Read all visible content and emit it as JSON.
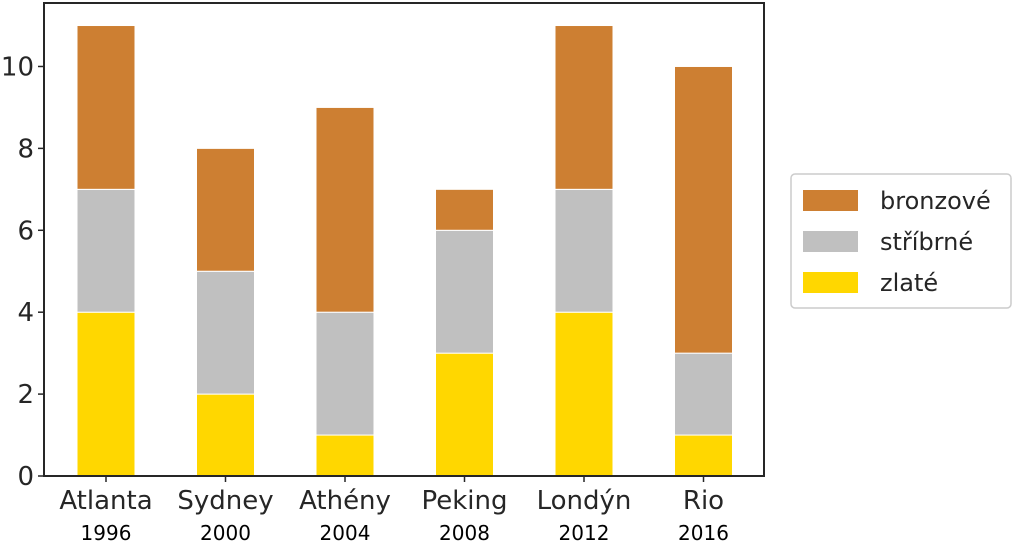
{
  "chart_data": {
    "type": "bar",
    "stacked": true,
    "categories": [
      "Atlanta",
      "Sydney",
      "Athény",
      "Peking",
      "Londýn",
      "Rio"
    ],
    "years": [
      "1996",
      "2000",
      "2004",
      "2008",
      "2012",
      "2016"
    ],
    "series": [
      {
        "name": "zlaté",
        "color": "#FFD700",
        "values": [
          4,
          2,
          1,
          3,
          4,
          1
        ]
      },
      {
        "name": "stříbrné",
        "color": "#C0C0C0",
        "values": [
          3,
          3,
          3,
          3,
          3,
          2
        ]
      },
      {
        "name": "bronzové",
        "color": "#CD7F32",
        "values": [
          4,
          3,
          5,
          1,
          4,
          7
        ]
      }
    ],
    "yticks": [
      "0",
      "2",
      "4",
      "6",
      "8",
      "10"
    ],
    "ylim": [
      0,
      11.55
    ],
    "grid": false,
    "legend_position": "right",
    "legend_order": [
      "bronzové",
      "stříbrné",
      "zlaté"
    ]
  }
}
